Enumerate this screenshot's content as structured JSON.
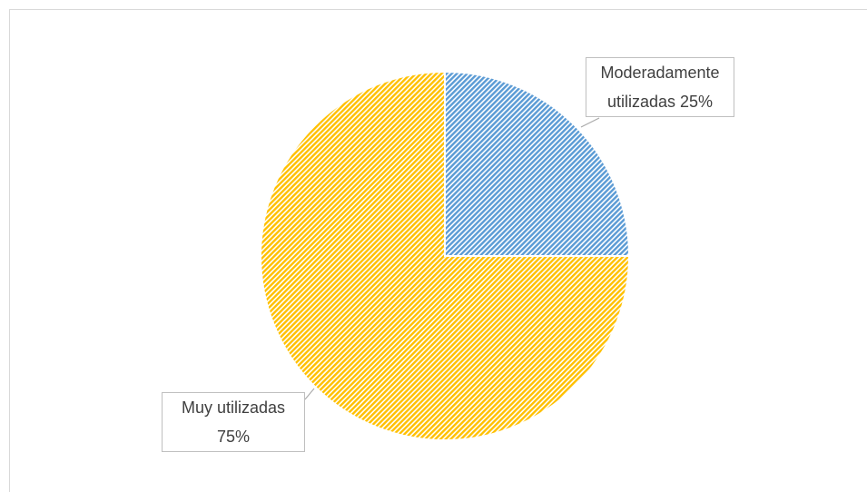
{
  "chart_data": {
    "type": "pie",
    "categories": [
      "Moderadamente utilizadas",
      "Muy utilizadas"
    ],
    "values": [
      25,
      75
    ],
    "value_labels": [
      "25%",
      "75%"
    ],
    "colors": [
      "#5b9bd5",
      "#ffc000"
    ]
  }
}
